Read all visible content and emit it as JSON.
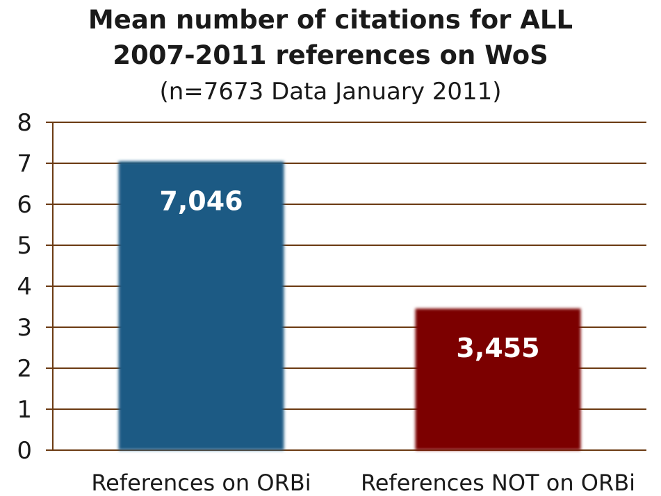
{
  "chart_data": {
    "type": "bar",
    "title_lines": [
      "Mean number of citations for ALL",
      "2007-2011 references on WoS"
    ],
    "subtitle": "(n=7673  Data January 2011)",
    "categories": [
      "References on ORBi",
      "References NOT on ORBi"
    ],
    "values": [
      7.046,
      3.455
    ],
    "value_labels": [
      "7,046",
      "3,455"
    ],
    "bar_colors": [
      "#1a5a84",
      "#7b0000"
    ],
    "ylim": [
      0,
      8
    ],
    "yticks": [
      "0",
      "1",
      "2",
      "3",
      "4",
      "5",
      "6",
      "7",
      "8"
    ],
    "grid": true,
    "grid_color": "#6b3a12",
    "xlabel": "",
    "ylabel": ""
  }
}
